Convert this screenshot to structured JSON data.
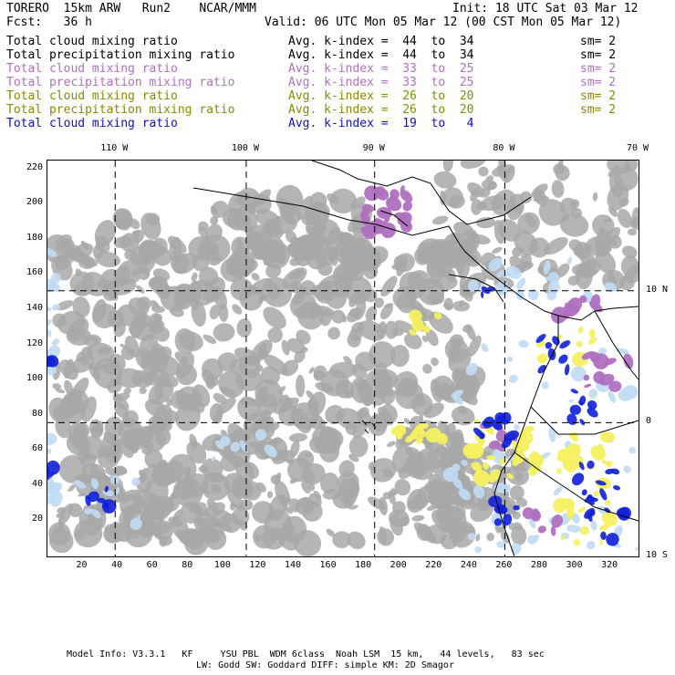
{
  "header": {
    "model": "TORERO  15km ARW   Run2    NCAR/MMM",
    "init": "Init: 18 UTC Sat 03 Mar 12",
    "fcst": "Fcst:   36 h",
    "valid": "Valid: 06 UTC Mon 05 Mar 12 (00 CST Mon 05 Mar 12)"
  },
  "legend": [
    {
      "field": "Total cloud mixing ratio",
      "kindex": "Avg. k-index =  44  to  34",
      "sm": "sm= 2",
      "color": "#000000"
    },
    {
      "field": "Total precipitation mixing ratio",
      "kindex": "Avg. k-index =  44  to  34",
      "sm": "sm= 2",
      "color": "#000000"
    },
    {
      "field": "Total cloud mixing ratio",
      "kindex": "Avg. k-index =  33  to  25",
      "sm": "sm= 2",
      "color": "#b070c0"
    },
    {
      "field": "Total precipitation mixing ratio",
      "kindex": "Avg. k-index =  33  to  25",
      "sm": "sm= 2",
      "color": "#b070c0"
    },
    {
      "field": "Total cloud mixing ratio",
      "kindex": "Avg. k-index =  26  to  20",
      "sm": "sm= 2",
      "color": "#8a8a00"
    },
    {
      "field": "Total precipitation mixing ratio",
      "kindex": "Avg. k-index =  26  to  20",
      "sm": "sm= 2",
      "color": "#8a8a00"
    },
    {
      "field": "Total cloud mixing ratio",
      "kindex": "Avg. k-index =  19  to   4",
      "sm": "",
      "color": "#1010d0"
    }
  ],
  "axes": {
    "x_grid": {
      "min": 0,
      "max": 336,
      "ticks": [
        20,
        40,
        60,
        80,
        100,
        120,
        140,
        160,
        180,
        200,
        220,
        240,
        260,
        280,
        300,
        320
      ]
    },
    "y_grid": {
      "min": 0,
      "max": 225,
      "ticks": [
        20,
        40,
        60,
        80,
        100,
        120,
        140,
        160,
        180,
        200,
        220
      ]
    },
    "longitudes": [
      {
        "label": "110 W",
        "x": 38.5
      },
      {
        "label": "100 W",
        "x": 113
      },
      {
        "label": "90 W",
        "x": 186
      },
      {
        "label": "80 W",
        "x": 260
      },
      {
        "label": "70 W",
        "x": 336
      }
    ],
    "latitudes": [
      {
        "label": "10 N",
        "y": 151
      },
      {
        "label": "0",
        "y": 76
      },
      {
        "label": "10 S",
        "y": 0
      }
    ]
  },
  "fields": {
    "gray": "#a8a8a8",
    "light_blue": "#c0dcf4",
    "purple": "#b070c0",
    "yellow": "#f4f060",
    "blue": "#1020d8"
  },
  "footer": {
    "line1": "Model Info: V3.3.1   KF     YSU PBL  WDM 6class  Noah LSM  15 km,   44 levels,   83 sec",
    "line2": "LW: Godd SW: Goddard DIFF: simple KM: 2D Smagor"
  }
}
